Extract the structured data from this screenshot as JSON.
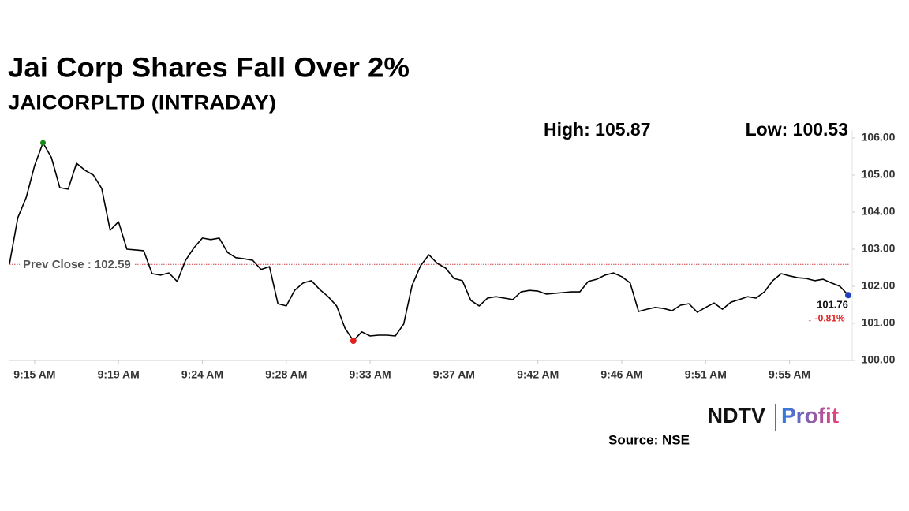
{
  "chart_data": {
    "type": "line",
    "title": "Jai Corp Shares Fall Over 2%",
    "subtitle": "JAICORPLTD (INTRADAY)",
    "annotations": {
      "high": "High: 105.87",
      "low": "Low: 100.53",
      "last": "101.76",
      "change": "↓ -0.81%",
      "prev_close_label": "Prev Close : 102.59",
      "prev_close": 102.59
    },
    "source": "Source: NSE",
    "logo": {
      "left": "NDTV",
      "right": "Profit"
    },
    "categories": [
      null,
      null,
      null,
      "9:15 AM",
      null,
      null,
      null,
      null,
      null,
      null,
      null,
      null,
      null,
      "9:19 AM",
      null,
      null,
      null,
      null,
      null,
      null,
      null,
      null,
      null,
      "9:24 AM",
      null,
      null,
      null,
      null,
      null,
      null,
      null,
      null,
      null,
      "9:28 AM",
      null,
      null,
      null,
      null,
      null,
      null,
      null,
      null,
      null,
      "9:33 AM",
      null,
      null,
      null,
      null,
      null,
      null,
      null,
      null,
      null,
      "9:37 AM",
      null,
      null,
      null,
      null,
      null,
      null,
      null,
      null,
      null,
      "9:42 AM",
      null,
      null,
      null,
      null,
      null,
      null,
      null,
      null,
      null,
      "9:46 AM",
      null,
      null,
      null,
      null,
      null,
      null,
      null,
      null,
      null,
      "9:51 AM",
      null,
      null,
      null,
      null,
      null,
      null,
      null,
      null,
      null,
      "9:55 AM",
      null,
      null,
      null,
      null,
      null,
      null,
      null
    ],
    "values": [
      102.6,
      103.85,
      104.4,
      105.26,
      105.87,
      105.47,
      104.66,
      104.62,
      105.32,
      105.13,
      105.0,
      104.64,
      103.51,
      103.74,
      103.0,
      102.98,
      102.96,
      102.34,
      102.3,
      102.36,
      102.13,
      102.7,
      103.04,
      103.3,
      103.26,
      103.3,
      102.91,
      102.77,
      102.74,
      102.7,
      102.45,
      102.53,
      101.53,
      101.47,
      101.89,
      102.09,
      102.15,
      101.91,
      101.72,
      101.47,
      100.87,
      100.53,
      100.77,
      100.66,
      100.68,
      100.68,
      100.66,
      100.98,
      102.02,
      102.55,
      102.85,
      102.62,
      102.49,
      102.21,
      102.15,
      101.62,
      101.47,
      101.68,
      101.72,
      101.68,
      101.64,
      101.85,
      101.89,
      101.87,
      101.79,
      101.81,
      101.83,
      101.85,
      101.85,
      102.13,
      102.19,
      102.3,
      102.36,
      102.26,
      102.09,
      101.32,
      101.38,
      101.43,
      101.4,
      101.34,
      101.49,
      101.53,
      101.3,
      101.43,
      101.55,
      101.38,
      101.57,
      101.64,
      101.72,
      101.68,
      101.85,
      102.15,
      102.34,
      102.28,
      102.23,
      102.21,
      102.15,
      102.19,
      102.09,
      102.0,
      101.76
    ],
    "color": "#000000",
    "high_color": "#1a8a1a",
    "low_color": "#e02020",
    "last_color": "#1f3fbf",
    "prev_close_color": "#d04040",
    "ylim": [
      100,
      106
    ],
    "yticks": [
      {
        "value": 100,
        "label": "100.00"
      },
      {
        "value": 101,
        "label": "101.00"
      },
      {
        "value": 102,
        "label": "102.00"
      },
      {
        "value": 103,
        "label": "103.00"
      },
      {
        "value": 104,
        "label": "104.00"
      },
      {
        "value": 105,
        "label": "105.00"
      },
      {
        "value": 106,
        "label": "106.00"
      }
    ],
    "grid": false
  }
}
